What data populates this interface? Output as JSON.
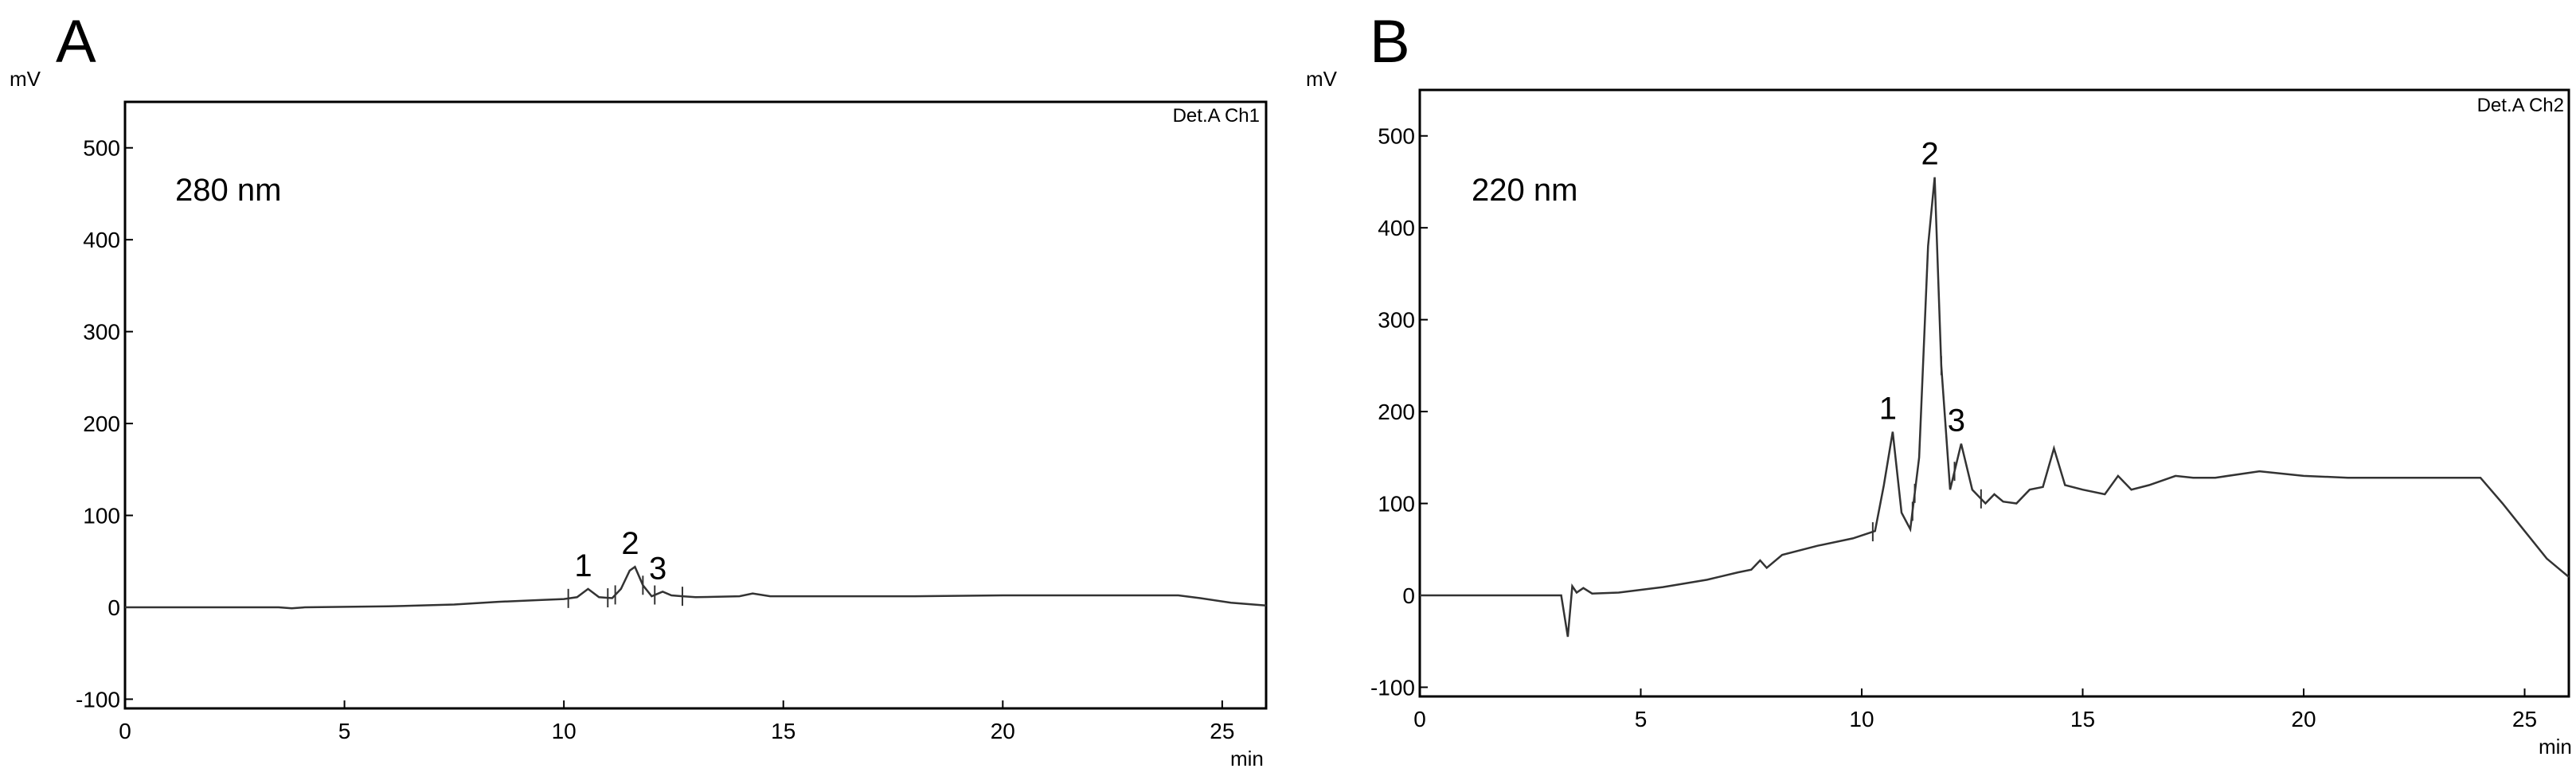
{
  "chart_data": [
    {
      "type": "line",
      "panel_label": "A",
      "ylabel": "mV",
      "xlabel": "min",
      "detector": "Det.A Ch1",
      "annotation": "280 nm",
      "xlim": [
        0,
        26
      ],
      "ylim": [
        -110,
        550
      ],
      "x_ticks": [
        0,
        5,
        10,
        15,
        20,
        25
      ],
      "y_ticks": [
        -100,
        0,
        100,
        200,
        300,
        400,
        500
      ],
      "grid": false,
      "series": [
        {
          "x": [
            0,
            2,
            3.5,
            3.8,
            4.1,
            6,
            7.5,
            8.5,
            9.5,
            10.0,
            10.3,
            10.55,
            10.8,
            11.1,
            11.3,
            11.5,
            11.62,
            11.8,
            12.0,
            12.1,
            12.25,
            12.45,
            12.7,
            13,
            14,
            14.3,
            14.7,
            16,
            18,
            20,
            22,
            24,
            24.5,
            25.2,
            26
          ],
          "y": [
            0,
            0,
            0,
            -1,
            0,
            1,
            3,
            6,
            8,
            9,
            11,
            20,
            11,
            10,
            20,
            40,
            44,
            24,
            12,
            14,
            17,
            13,
            12,
            11,
            12,
            15,
            12,
            12,
            12,
            13,
            13,
            13,
            10,
            5,
            2
          ]
        }
      ],
      "peak_labels": [
        {
          "text": "1",
          "x": 10.55,
          "y": 20
        },
        {
          "text": "2",
          "x": 11.62,
          "y": 44
        },
        {
          "text": "3",
          "x": 12.25,
          "y": 17
        }
      ]
    },
    {
      "type": "line",
      "panel_label": "B",
      "ylabel": "mV",
      "xlabel": "min",
      "detector": "Det.A Ch2",
      "annotation": "220 nm",
      "xlim": [
        0,
        26
      ],
      "ylim": [
        -110,
        550
      ],
      "x_ticks": [
        0,
        5,
        10,
        15,
        20,
        25
      ],
      "y_ticks": [
        -100,
        0,
        100,
        200,
        300,
        400,
        500
      ],
      "grid": false,
      "series": [
        {
          "x": [
            0,
            3.2,
            3.35,
            3.45,
            3.55,
            3.7,
            3.9,
            4.5,
            5.5,
            6.5,
            7.2,
            7.5,
            7.7,
            7.85,
            8.2,
            9,
            9.8,
            10.3,
            10.5,
            10.7,
            10.9,
            11.1,
            11.3,
            11.5,
            11.65,
            11.8,
            12.0,
            12.25,
            12.5,
            12.8,
            13.0,
            13.2,
            13.5,
            13.8,
            14.1,
            14.35,
            14.6,
            15.0,
            15.5,
            15.8,
            16.1,
            16.5,
            17.1,
            17.5,
            18,
            19,
            20,
            21,
            22,
            23,
            24,
            24.5,
            25,
            25.5,
            26
          ],
          "y": [
            0,
            0,
            -45,
            10,
            3,
            8,
            2,
            3,
            9,
            17,
            25,
            28,
            38,
            30,
            44,
            54,
            62,
            70,
            120,
            178,
            90,
            72,
            150,
            380,
            455,
            250,
            115,
            165,
            115,
            100,
            110,
            102,
            100,
            115,
            118,
            160,
            120,
            115,
            110,
            130,
            115,
            120,
            130,
            128,
            128,
            135,
            130,
            128,
            128,
            128,
            128,
            100,
            70,
            40,
            20
          ]
        }
      ],
      "peak_labels": [
        {
          "text": "1",
          "x": 10.7,
          "y": 178
        },
        {
          "text": "2",
          "x": 11.65,
          "y": 455
        },
        {
          "text": "3",
          "x": 12.25,
          "y": 165
        }
      ]
    }
  ]
}
